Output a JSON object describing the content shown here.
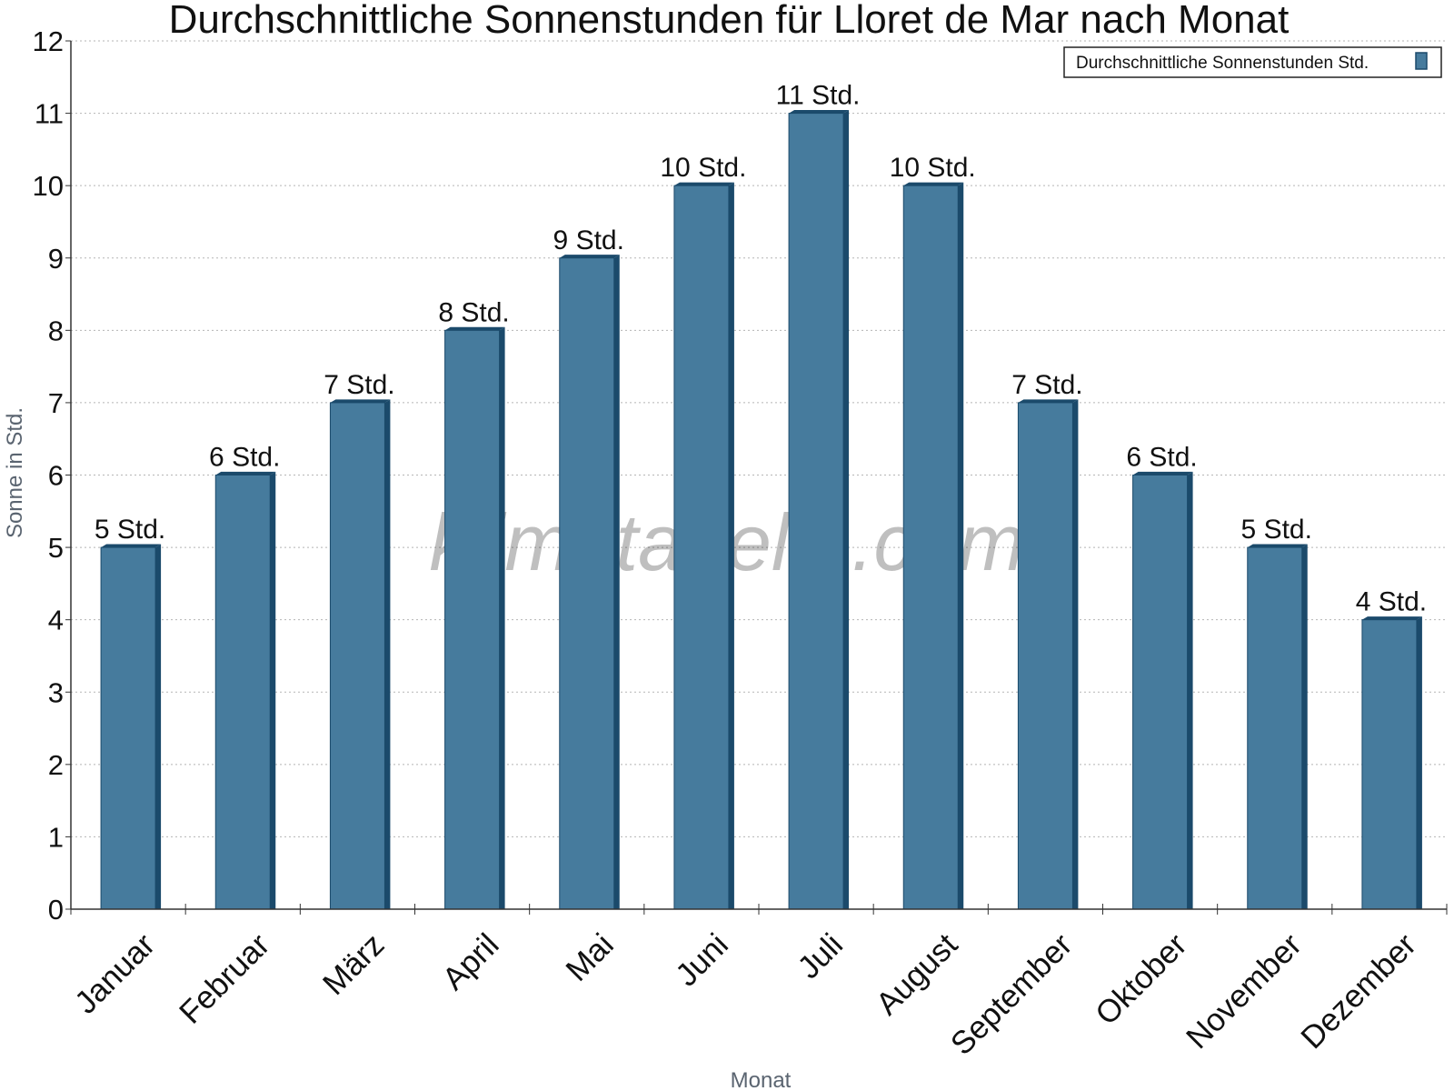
{
  "chart_data": {
    "type": "bar",
    "title": "Durchschnittliche Sonnenstunden für Lloret de Mar nach Monat",
    "xlabel": "Monat",
    "ylabel": "Sonne in Std.",
    "ylim": [
      0,
      12
    ],
    "yticks": [
      0,
      1,
      2,
      3,
      4,
      5,
      6,
      7,
      8,
      9,
      10,
      11,
      12
    ],
    "grid": true,
    "legend_position": "top-right",
    "categories": [
      "Januar",
      "Februar",
      "März",
      "April",
      "Mai",
      "Juni",
      "Juli",
      "August",
      "September",
      "Oktober",
      "November",
      "Dezember"
    ],
    "series": [
      {
        "name": "Durchschnittliche Sonnenstunden Std.",
        "values": [
          5,
          6,
          7,
          8,
          9,
          10,
          11,
          10,
          7,
          6,
          5,
          4
        ],
        "labels": [
          "5 Std.",
          "6 Std.",
          "7 Std.",
          "8 Std.",
          "9 Std.",
          "10 Std.",
          "11 Std.",
          "10 Std.",
          "7 Std.",
          "6 Std.",
          "5 Std.",
          "4 Std."
        ],
        "color": "#467b9d",
        "edge_color": "#1b4a6b"
      }
    ],
    "watermark": "klimatabelle.com"
  }
}
